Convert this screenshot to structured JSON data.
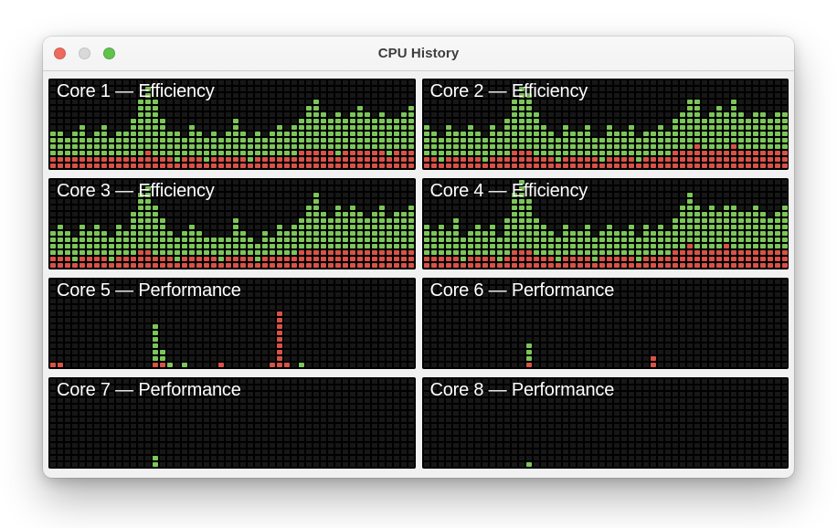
{
  "window": {
    "title": "CPU History",
    "traffic_lights": {
      "close": "close",
      "minimize": "minimize",
      "zoom": "zoom"
    }
  },
  "colors": {
    "user_green": "#83d05e",
    "system_red": "#e4574c",
    "panel_background": "#000000",
    "empty_cell": "#171717",
    "title_text": "#3d3d3d"
  },
  "chart_data": {
    "type": "bar",
    "title": "CPU History",
    "subtitle_note": "8 per-core usage history panels; each column is one time step; stacked cells: red = bottom (system), green = above (user)",
    "columns": 50,
    "max_rows": 14,
    "ylim": [
      0,
      14
    ],
    "grid": "faint dark empty-cell grid on black",
    "cores": [
      {
        "label": "Core 1 — Efficiency",
        "green": [
          4,
          4,
          3,
          4,
          5,
          3,
          4,
          5,
          3,
          4,
          4,
          6,
          9,
          10,
          9,
          6,
          4,
          5,
          3,
          5,
          4,
          4,
          4,
          3,
          4,
          6,
          4,
          4,
          4,
          3,
          4,
          5,
          4,
          5,
          5,
          7,
          8,
          6,
          5,
          7,
          5,
          6,
          7,
          6,
          5,
          6,
          6,
          5,
          6,
          7
        ],
        "red": [
          2,
          2,
          2,
          2,
          2,
          2,
          2,
          2,
          2,
          2,
          2,
          2,
          2,
          3,
          2,
          2,
          2,
          1,
          2,
          2,
          2,
          1,
          2,
          2,
          2,
          2,
          2,
          1,
          2,
          2,
          2,
          2,
          2,
          2,
          3,
          3,
          3,
          3,
          3,
          2,
          3,
          3,
          3,
          3,
          3,
          3,
          2,
          3,
          3,
          3
        ]
      },
      {
        "label": "Core 2 — Efficiency",
        "green": [
          5,
          4,
          4,
          5,
          4,
          4,
          5,
          4,
          4,
          5,
          4,
          6,
          8,
          10,
          9,
          7,
          5,
          4,
          4,
          5,
          4,
          4,
          5,
          3,
          4,
          5,
          4,
          4,
          5,
          4,
          4,
          4,
          5,
          4,
          5,
          6,
          8,
          7,
          5,
          6,
          7,
          6,
          7,
          6,
          5,
          6,
          6,
          5,
          6,
          6
        ],
        "red": [
          2,
          2,
          1,
          2,
          2,
          2,
          2,
          2,
          1,
          2,
          2,
          2,
          3,
          3,
          3,
          2,
          2,
          2,
          1,
          2,
          2,
          2,
          2,
          2,
          1,
          2,
          2,
          2,
          2,
          1,
          2,
          2,
          2,
          2,
          3,
          3,
          3,
          4,
          3,
          3,
          3,
          3,
          4,
          3,
          3,
          3,
          3,
          3,
          3,
          3
        ]
      },
      {
        "label": "Core 3 — Efficiency",
        "green": [
          4,
          5,
          4,
          4,
          5,
          4,
          5,
          4,
          4,
          5,
          4,
          7,
          9,
          10,
          8,
          6,
          4,
          4,
          4,
          5,
          4,
          3,
          3,
          4,
          3,
          6,
          4,
          3,
          3,
          4,
          3,
          5,
          4,
          5,
          5,
          7,
          9,
          6,
          5,
          7,
          6,
          7,
          6,
          5,
          6,
          7,
          5,
          6,
          6,
          7
        ],
        "red": [
          2,
          2,
          2,
          1,
          2,
          2,
          2,
          2,
          1,
          2,
          2,
          2,
          3,
          3,
          2,
          2,
          2,
          1,
          2,
          2,
          2,
          2,
          2,
          1,
          2,
          2,
          2,
          2,
          1,
          2,
          2,
          2,
          2,
          2,
          3,
          3,
          3,
          3,
          3,
          3,
          3,
          3,
          3,
          3,
          3,
          3,
          3,
          3,
          3,
          3
        ]
      },
      {
        "label": "Core 4 — Efficiency",
        "green": [
          5,
          4,
          5,
          4,
          6,
          4,
          4,
          5,
          4,
          5,
          4,
          6,
          9,
          11,
          8,
          6,
          5,
          4,
          4,
          5,
          4,
          4,
          5,
          4,
          4,
          5,
          4,
          4,
          5,
          4,
          5,
          4,
          5,
          4,
          5,
          7,
          8,
          7,
          6,
          7,
          6,
          6,
          7,
          6,
          6,
          7,
          6,
          5,
          6,
          7
        ],
        "red": [
          2,
          2,
          2,
          2,
          2,
          1,
          2,
          2,
          2,
          2,
          1,
          2,
          3,
          3,
          3,
          2,
          2,
          2,
          1,
          2,
          2,
          2,
          2,
          1,
          2,
          2,
          2,
          2,
          2,
          1,
          2,
          2,
          2,
          2,
          3,
          3,
          4,
          3,
          3,
          3,
          3,
          4,
          3,
          3,
          3,
          3,
          3,
          3,
          3,
          3
        ]
      },
      {
        "label": "Core 5 — Performance",
        "green": [
          0,
          0,
          0,
          0,
          0,
          0,
          0,
          0,
          0,
          0,
          0,
          0,
          0,
          0,
          6,
          2,
          1,
          0,
          1,
          0,
          0,
          0,
          0,
          0,
          0,
          0,
          0,
          0,
          0,
          0,
          0,
          0,
          0,
          0,
          1,
          0,
          0,
          0,
          0,
          0,
          0,
          0,
          0,
          0,
          0,
          0,
          0,
          0,
          0,
          0
        ],
        "red": [
          1,
          1,
          0,
          0,
          0,
          0,
          0,
          0,
          0,
          0,
          0,
          0,
          0,
          0,
          1,
          1,
          0,
          0,
          0,
          0,
          0,
          0,
          0,
          1,
          0,
          0,
          0,
          0,
          0,
          0,
          1,
          9,
          1,
          0,
          0,
          0,
          0,
          0,
          0,
          0,
          0,
          0,
          0,
          0,
          0,
          0,
          0,
          0,
          0,
          0
        ]
      },
      {
        "label": "Core 6 — Performance",
        "green": [
          0,
          0,
          0,
          0,
          0,
          0,
          0,
          0,
          0,
          0,
          0,
          0,
          0,
          0,
          3,
          0,
          0,
          0,
          0,
          0,
          0,
          0,
          0,
          0,
          0,
          0,
          0,
          0,
          0,
          0,
          0,
          0,
          0,
          0,
          0,
          0,
          0,
          0,
          0,
          0,
          0,
          0,
          0,
          0,
          0,
          0,
          0,
          0,
          0,
          0
        ],
        "red": [
          0,
          0,
          0,
          0,
          0,
          0,
          0,
          0,
          0,
          0,
          0,
          0,
          0,
          0,
          1,
          0,
          0,
          0,
          0,
          0,
          0,
          0,
          0,
          0,
          0,
          0,
          0,
          0,
          0,
          0,
          0,
          2,
          0,
          0,
          0,
          0,
          0,
          0,
          0,
          0,
          0,
          0,
          0,
          0,
          0,
          0,
          0,
          0,
          0,
          0
        ]
      },
      {
        "label": "Core 7 — Performance",
        "green": [
          0,
          0,
          0,
          0,
          0,
          0,
          0,
          0,
          0,
          0,
          0,
          0,
          0,
          0,
          2,
          0,
          0,
          0,
          0,
          0,
          0,
          0,
          0,
          0,
          0,
          0,
          0,
          0,
          0,
          0,
          0,
          0,
          0,
          0,
          0,
          0,
          0,
          0,
          0,
          0,
          0,
          0,
          0,
          0,
          0,
          0,
          0,
          0,
          0,
          0
        ],
        "red": [
          0,
          0,
          0,
          0,
          0,
          0,
          0,
          0,
          0,
          0,
          0,
          0,
          0,
          0,
          0,
          0,
          0,
          0,
          0,
          0,
          0,
          0,
          0,
          0,
          0,
          0,
          0,
          0,
          0,
          0,
          0,
          0,
          0,
          0,
          0,
          0,
          0,
          0,
          0,
          0,
          0,
          0,
          0,
          0,
          0,
          0,
          0,
          0,
          0,
          0
        ]
      },
      {
        "label": "Core 8 — Performance",
        "green": [
          0,
          0,
          0,
          0,
          0,
          0,
          0,
          0,
          0,
          0,
          0,
          0,
          0,
          0,
          1,
          0,
          0,
          0,
          0,
          0,
          0,
          0,
          0,
          0,
          0,
          0,
          0,
          0,
          0,
          0,
          0,
          0,
          0,
          0,
          0,
          0,
          0,
          0,
          0,
          0,
          0,
          0,
          0,
          0,
          0,
          0,
          0,
          0,
          0,
          0
        ],
        "red": [
          0,
          0,
          0,
          0,
          0,
          0,
          0,
          0,
          0,
          0,
          0,
          0,
          0,
          0,
          0,
          0,
          0,
          0,
          0,
          0,
          0,
          0,
          0,
          0,
          0,
          0,
          0,
          0,
          0,
          0,
          0,
          0,
          0,
          0,
          0,
          0,
          0,
          0,
          0,
          0,
          0,
          0,
          0,
          0,
          0,
          0,
          0,
          0,
          0,
          0
        ]
      }
    ]
  }
}
